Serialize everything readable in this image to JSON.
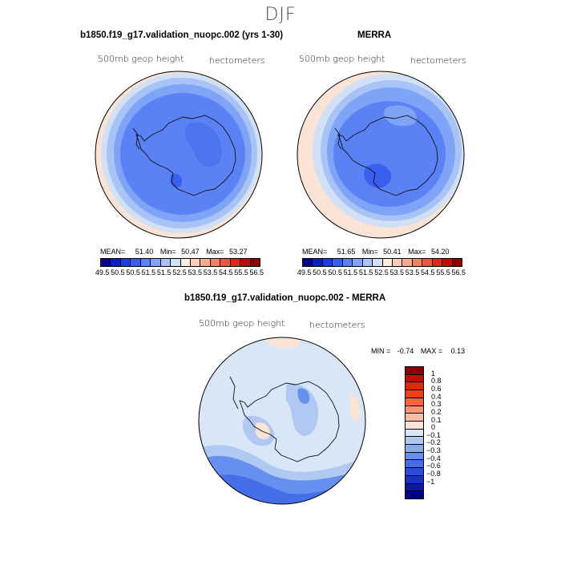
{
  "title": "DJF",
  "panels": {
    "model": {
      "title": "b1850.f19_g17.validation_nuopc.002 (yrs 1-30)",
      "variable": "500mb geop height",
      "units": "hectometers",
      "mean_label": "MEAN=",
      "mean": "51.40",
      "min_label": "Min=",
      "min": "50.47",
      "max_label": "Max=",
      "max": "53.27"
    },
    "obs": {
      "title": "MERRA",
      "variable": "500mb geop height",
      "units": "hectometers",
      "mean_label": "MEAN=",
      "mean": "51.65",
      "min_label": "Min=",
      "min": "50.41",
      "max_label": "Max=",
      "max": "54.20"
    },
    "diff": {
      "title": "b1850.f19_g17.validation_nuopc.002 - MERRA",
      "variable": "500mb geop height",
      "units": "hectometers",
      "min_label": "MIN =",
      "min": "-0.74",
      "max_label": "MAX =",
      "max": "0.13"
    }
  },
  "colorbar_abs": {
    "colors": [
      "#08008c",
      "#0c1fbf",
      "#1d3fe0",
      "#3860ef",
      "#5a82f5",
      "#7fa3f7",
      "#a8c3f5",
      "#d2e0f5",
      "#fdeee0",
      "#f9cdb7",
      "#f4ab8e",
      "#ee8463",
      "#e65a3b",
      "#d92b17",
      "#bf0c05",
      "#8a0000"
    ],
    "ticks": [
      "49.5",
      "50.5",
      "50.5",
      "51.5",
      "51.5",
      "52.5",
      "53.5",
      "53.5",
      "54.5",
      "55.5",
      "56.5"
    ]
  },
  "colorbar_diff": {
    "colors": [
      "#8a0000",
      "#c40e05",
      "#e0260f",
      "#f03e17",
      "#f5663a",
      "#f69673",
      "#f7bda4",
      "#fbe3d6",
      "#d8e6f8",
      "#b0c9f3",
      "#8aabf0",
      "#6690f0",
      "#456fe8",
      "#2a4fdc",
      "#1833c2",
      "#0a1a9e",
      "#000086"
    ],
    "labels": [
      "1",
      "0.8",
      "0.6",
      "0.4",
      "0.3",
      "0.2",
      "0.1",
      "0",
      "−0.1",
      "−0.2",
      "−0.3",
      "−0.4",
      "−0.6",
      "−0.8",
      "−1"
    ]
  },
  "map_colors": {
    "abs_outer": "#fbe4d6",
    "abs_ring1": "#d2e0f5",
    "abs_ring2": "#a8c3f5",
    "abs_ring3": "#7fa3f7",
    "abs_ring4": "#5a82f5",
    "abs_ring5": "#3860ef",
    "abs_core": "#4d74ee",
    "diff_bg": "#d8e6f8",
    "diff_mid": "#b0c9f3",
    "diff_dark": "#6690f0",
    "diff_darker": "#456fe8",
    "diff_warm": "#fbe3d6"
  }
}
